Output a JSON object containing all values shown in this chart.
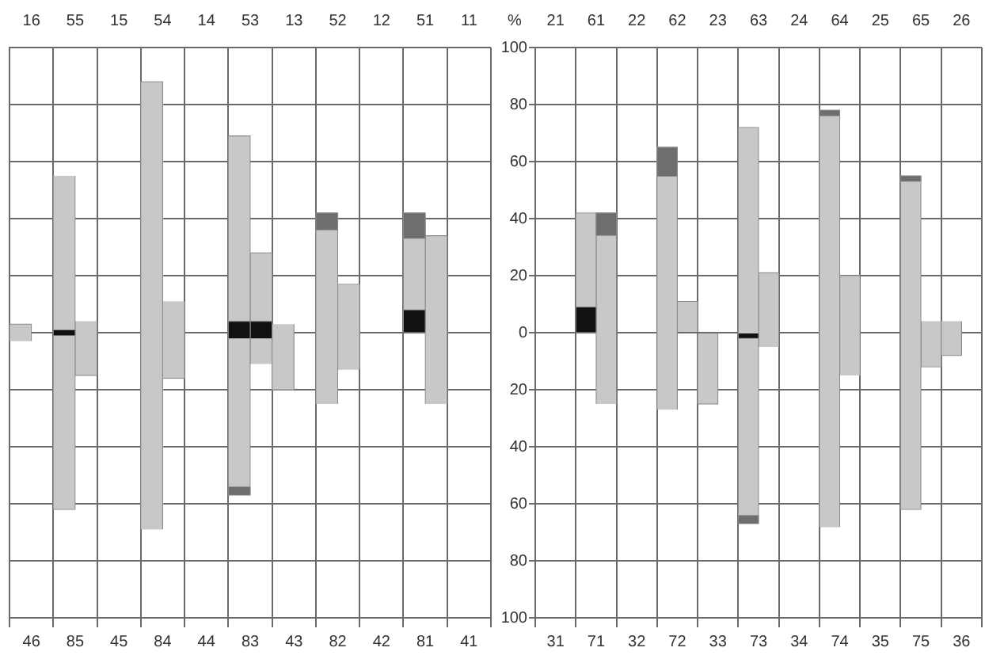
{
  "chart_data": [
    {
      "type": "bar",
      "categories": [
        "46",
        "85",
        "45",
        "84",
        "44",
        "83",
        "43",
        "82",
        "42",
        "81",
        "41"
      ],
      "annotations": [
        "16",
        "55",
        "15",
        "54",
        "14",
        "53",
        "13",
        "52",
        "12",
        "51",
        "11"
      ],
      "series": [
        {
          "color": "#c8c8c8",
          "base": [
            -3,
            -62,
            null,
            -69,
            null,
            -57,
            -20,
            -25,
            null,
            0,
            null
          ],
          "values": [
            6,
            117,
            null,
            157,
            null,
            126,
            23,
            67,
            null,
            42,
            null
          ]
        },
        {
          "color": "#6e6e6e",
          "base": [
            null,
            null,
            null,
            null,
            null,
            -57,
            null,
            36,
            null,
            33,
            null
          ],
          "values": [
            null,
            null,
            null,
            null,
            null,
            3,
            null,
            6,
            null,
            9,
            null
          ]
        },
        {
          "color": "#111111",
          "base": [
            null,
            -1,
            null,
            null,
            null,
            -2,
            null,
            null,
            null,
            0,
            null
          ],
          "values": [
            null,
            2,
            null,
            null,
            null,
            6,
            null,
            null,
            null,
            8,
            null
          ]
        },
        {
          "color": "#c8c8c8",
          "base": [
            null,
            -15,
            null,
            -16,
            null,
            -11,
            null,
            -13,
            null,
            -25,
            null
          ],
          "values": [
            null,
            19,
            null,
            27,
            null,
            39,
            null,
            30,
            null,
            59,
            null
          ]
        },
        {
          "color": "#111111",
          "base": [
            null,
            null,
            null,
            null,
            null,
            -2,
            null,
            null,
            null,
            null,
            null
          ],
          "values": [
            null,
            null,
            null,
            null,
            null,
            6,
            null,
            null,
            null,
            null,
            null
          ]
        }
      ],
      "ylim": [
        -100,
        100
      ],
      "yticks": [
        100,
        80,
        60,
        40,
        20,
        0,
        -20,
        -40,
        -60,
        -80,
        -100
      ],
      "grid": true,
      "tick_labels": "x"
    },
    {
      "type": "bar",
      "categories": [
        "31",
        "71",
        "32",
        "72",
        "33",
        "73",
        "34",
        "74",
        "35",
        "75",
        "36"
      ],
      "annotations": [
        "21",
        "61",
        "22",
        "62",
        "23",
        "63",
        "24",
        "64",
        "25",
        "65",
        "26"
      ],
      "ylabel": "%",
      "series": [
        {
          "color": "#c8c8c8",
          "base": [
            null,
            0,
            null,
            -27,
            -25,
            -67,
            null,
            -68,
            null,
            -62,
            -8
          ],
          "values": [
            null,
            42,
            null,
            92,
            25,
            139,
            null,
            146,
            null,
            117,
            12
          ]
        },
        {
          "color": "#6e6e6e",
          "base": [
            null,
            null,
            null,
            55,
            null,
            -67,
            null,
            76,
            null,
            53,
            null
          ],
          "values": [
            null,
            null,
            null,
            10,
            null,
            3,
            null,
            2,
            null,
            2,
            null
          ]
        },
        {
          "color": "#111111",
          "base": [
            null,
            0,
            null,
            null,
            null,
            -2,
            null,
            null,
            null,
            null,
            null
          ],
          "values": [
            null,
            9,
            null,
            null,
            null,
            2,
            null,
            null,
            null,
            null,
            null
          ]
        },
        {
          "color": "#c8c8c8",
          "base": [
            null,
            -25,
            null,
            0,
            null,
            -5,
            null,
            -15,
            null,
            -12,
            null
          ],
          "values": [
            null,
            67,
            null,
            11,
            null,
            26,
            null,
            35,
            null,
            16,
            null
          ]
        },
        {
          "color": "#6e6e6e",
          "base": [
            null,
            34,
            null,
            null,
            null,
            null,
            null,
            null,
            null,
            null,
            null
          ],
          "values": [
            null,
            8,
            null,
            null,
            null,
            null,
            null,
            null,
            null,
            null,
            null
          ]
        }
      ],
      "ylim": [
        -100,
        100
      ],
      "yticks": [
        100,
        80,
        60,
        40,
        20,
        0,
        {
          "value": -20,
          "label": "20"
        },
        {
          "value": -40,
          "label": "40"
        },
        {
          "value": -60,
          "label": "60"
        },
        {
          "value": -80,
          "label": "80"
        },
        {
          "value": -100,
          "label": "100"
        }
      ],
      "grid": true
    }
  ]
}
